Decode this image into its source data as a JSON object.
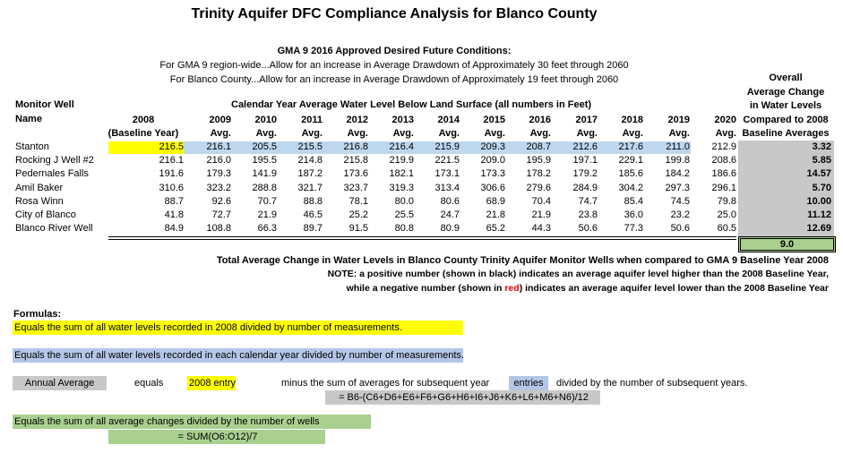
{
  "title": "Trinity Aquifer DFC Compliance Analysis for Blanco County",
  "gma": {
    "heading": "GMA 9 2016 Approved Desired Future Conditions:",
    "line1": "For GMA 9 region-wide...Allow for an increase in Average Drawdown of Approximately 30 feet through 2060",
    "line2": "For Blanco County...Allow for an increase in Average Drawdown of Approximately 19 feet through 2060"
  },
  "table": {
    "well_header_1": "Monitor Well",
    "well_header_2": "Name",
    "group_header": "Calendar Year Average Water Level Below Land Surface (all numbers in Feet)",
    "overall_header": [
      "Overall",
      "Average Change",
      "in Water Levels",
      "Compared to 2008",
      "Baseline Averages"
    ],
    "columns": [
      {
        "year": "2008",
        "sub": "(Baseline Year)"
      },
      {
        "year": "2009",
        "sub": "Avg."
      },
      {
        "year": "2010",
        "sub": "Avg."
      },
      {
        "year": "2011",
        "sub": "Avg."
      },
      {
        "year": "2012",
        "sub": "Avg."
      },
      {
        "year": "2013",
        "sub": "Avg."
      },
      {
        "year": "2014",
        "sub": "Avg."
      },
      {
        "year": "2015",
        "sub": "Avg."
      },
      {
        "year": "2016",
        "sub": "Avg."
      },
      {
        "year": "2017",
        "sub": "Avg."
      },
      {
        "year": "2018",
        "sub": "Avg."
      },
      {
        "year": "2019",
        "sub": "Avg."
      },
      {
        "year": "2020",
        "sub": "Avg."
      }
    ],
    "rows": [
      {
        "name": "Stanton",
        "values": [
          "216.5",
          "216.1",
          "205.5",
          "215.5",
          "216.8",
          "216.4",
          "215.9",
          "209.3",
          "208.7",
          "212.6",
          "217.6",
          "211.0",
          "212.9"
        ],
        "overall": "3.32"
      },
      {
        "name": "Rocking J Well #2",
        "values": [
          "216.1",
          "216.0",
          "195.5",
          "214.8",
          "215.8",
          "219.9",
          "221.5",
          "209.0",
          "195.9",
          "197.1",
          "229.1",
          "199.8",
          "208.6"
        ],
        "overall": "5.85"
      },
      {
        "name": "Pedernales Falls",
        "values": [
          "191.6",
          "179.3",
          "141.9",
          "187.2",
          "173.6",
          "182.1",
          "173.1",
          "173.3",
          "178.2",
          "179.2",
          "185.6",
          "184.2",
          "186.6"
        ],
        "overall": "14.57"
      },
      {
        "name": "Amil Baker",
        "values": [
          "310.6",
          "323.2",
          "288.8",
          "321.7",
          "323.7",
          "319.3",
          "313.4",
          "306.6",
          "279.6",
          "284.9",
          "304.2",
          "297.3",
          "296.1"
        ],
        "overall": "5.70"
      },
      {
        "name": "Rosa Winn",
        "values": [
          "88.7",
          "92.6",
          "70.7",
          "88.8",
          "78.1",
          "80.0",
          "80.6",
          "68.9",
          "70.4",
          "74.7",
          "85.4",
          "74.5",
          "79.8"
        ],
        "overall": "10.00"
      },
      {
        "name": "City of Blanco",
        "values": [
          "41.8",
          "72.7",
          "21.9",
          "46.5",
          "25.2",
          "25.5",
          "24.7",
          "21.8",
          "21.9",
          "23.8",
          "36.0",
          "23.2",
          "25.0"
        ],
        "overall": "11.12"
      },
      {
        "name": "Blanco River Well",
        "values": [
          "84.9",
          "108.8",
          "66.3",
          "89.7",
          "91.5",
          "80.8",
          "80.9",
          "65.2",
          "44.3",
          "50.6",
          "77.3",
          "50.6",
          "60.5"
        ],
        "overall": "12.69"
      }
    ],
    "total": "9.0"
  },
  "total_caption": "Total Average Change in Water Levels in Blanco County Trinity Aquifer Monitor Wells when compared to GMA 9 Baseline Year 2008",
  "note": {
    "line1": "NOTE: a positive number (shown in black) indicates an average aquifer level higher than the 2008 Baseline Year,",
    "line2_a": "while a negative number (shown in ",
    "line2_red": "red",
    "line2_b": ") indicates an average aquifer level lower than the 2008 Baseline Year"
  },
  "formulas": {
    "heading": "Formulas:",
    "baseline": "Equals the sum of all water levels recorded in 2008 divided by number of measurements.",
    "yearly": "Equals the sum of all water levels recorded in each calendar year divided by number of measurements.",
    "annual_average": "Annual Average",
    "equals": "equals",
    "entry_2008": "2008 entry",
    "minus_text": "minus the sum of averages for subsequent year",
    "entries": "entries",
    "divided_text": "divided by the number of subsequent years.",
    "annual_formula": "= B6-(C6+D6+E6+F6+G6+H6+I6+J6+K6+L6+M6+N6)/12",
    "total_text": "Equals the sum of all average changes divided by the number of wells",
    "total_formula": "= SUM(O6:O12)/7"
  },
  "colors": {
    "yellow": "#ffff00",
    "blue": "#bdd7ee",
    "blue2": "#b4c6e7",
    "gray": "#c8c8c8",
    "green": "#a9d08e",
    "red": "#e00000"
  }
}
